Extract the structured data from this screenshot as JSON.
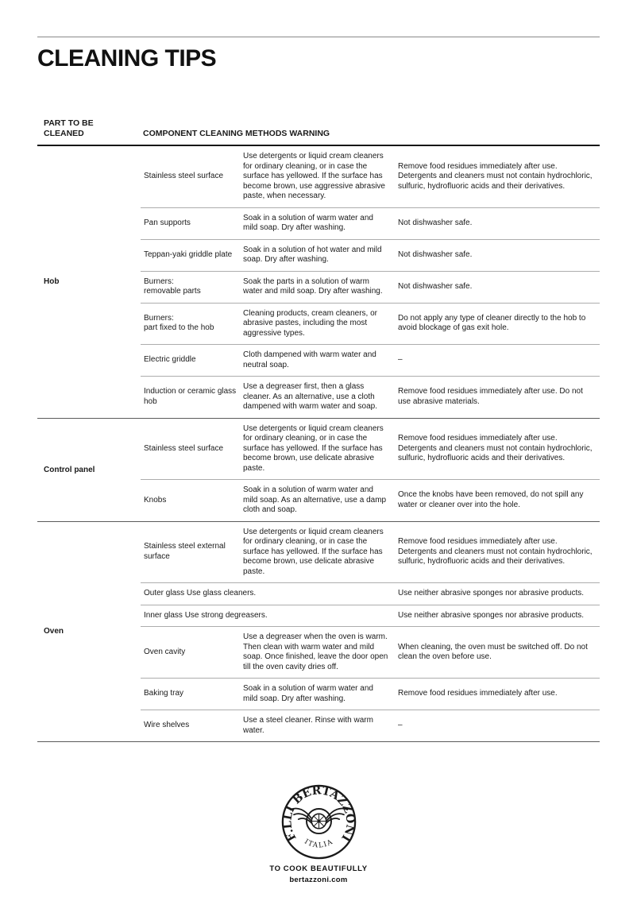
{
  "page": {
    "title": "CLEANING TIPS"
  },
  "table": {
    "header": {
      "col1": "PART TO BE CLEANED",
      "col_rest": "COMPONENT CLEANING METHODS WARNING"
    },
    "groups": [
      {
        "part": "Hob",
        "rows": [
          {
            "component": "Stainless steel surface",
            "methods": "Use detergents or liquid cream cleaners for ordinary cleaning, or in case the surface has yellowed. If the surface has become brown, use aggressive abrasive paste, when necessary.",
            "warning": "Remove food residues immediately after use. Detergents and cleaners must not contain hydrochloric, sulfuric, hydrofluoric acids and their derivatives."
          },
          {
            "component": "Pan supports",
            "methods": "Soak in a solution of warm water and mild soap. Dry after washing.",
            "warning": "Not dishwasher safe."
          },
          {
            "component": "Teppan-yaki griddle plate",
            "methods": "Soak in a solution of hot water and mild soap. Dry after washing.",
            "warning": "Not dishwasher safe."
          },
          {
            "component": "Burners:\nremovable parts",
            "methods": "Soak the parts in a solution of warm water and mild soap. Dry after washing.",
            "warning": "Not dishwasher safe."
          },
          {
            "component": "Burners:\npart fixed to the hob",
            "methods": "Cleaning products, cream cleaners, or abrasive pastes, including the most aggressive types.",
            "warning": "Do not apply any type of cleaner directly to the hob to avoid blockage of gas exit hole."
          },
          {
            "component": "Electric griddle",
            "methods": "Cloth dampened with warm water and neutral soap.",
            "warning": "–"
          },
          {
            "component": "Induction or ceramic glass hob",
            "methods": "Use a degreaser first, then a glass cleaner. As an alternative, use a cloth dampened with warm water and soap.",
            "warning": "Remove food residues immediately after use. Do not use abrasive materials."
          }
        ]
      },
      {
        "part": "Control panel",
        "rows": [
          {
            "component": "Stainless steel surface",
            "methods": "Use detergents or liquid cream cleaners for ordinary cleaning, or in case the surface has yellowed. If the surface has become brown, use delicate abrasive paste.",
            "warning": "Remove food residues immediately after use. Detergents and cleaners must not contain hydrochloric, sulfuric, hydrofluoric acids and their derivatives."
          },
          {
            "component": "Knobs",
            "methods": "Soak in a solution of warm water and mild soap. As an alternative, use a damp cloth and soap.",
            "warning": "Once the knobs have been removed, do not spill any water or cleaner over into the hole."
          }
        ]
      },
      {
        "part": "Oven",
        "rows": [
          {
            "component": "Stainless steel external surface",
            "methods": "Use detergents or liquid cream cleaners for ordinary cleaning, or in case the surface has yellowed. If the surface has become brown, use delicate abrasive paste.",
            "warning": "Remove food residues immediately after use. Detergents and cleaners must not contain hydrochloric, sulfuric, hydrofluoric acids and their derivatives."
          },
          {
            "merged": "Outer glass Use glass cleaners.",
            "warning": "Use neither abrasive sponges nor abrasive products."
          },
          {
            "merged": "Inner glass Use strong degreasers.",
            "warning": "Use neither abrasive sponges nor abrasive products."
          },
          {
            "component": "Oven cavity",
            "methods": "Use a degreaser when the oven is warm. Then clean with warm water and mild soap. Once finished, leave the door open till the oven cavity dries off.",
            "warning": "When cleaning, the oven must be switched off. Do not clean the oven before use."
          },
          {
            "component": "Baking tray",
            "methods": "Soak in a solution of warm water and mild soap. Dry after washing.",
            "warning": "Remove food residues immediately after use."
          },
          {
            "component": "Wire shelves",
            "methods": "Use a steel cleaner. Rinse with warm water.",
            "warning": "–"
          }
        ]
      }
    ]
  },
  "footer": {
    "logo_ring_text": "F.LLI BERTAZZONI",
    "logo_bottom_text": "ITALIA",
    "tagline": "TO COOK BEAUTIFULLY",
    "website": "bertazzoni.com"
  },
  "colors": {
    "text": "#1a1a1a",
    "row_separator": "#adadad",
    "group_separator": "#5a5a5a",
    "header_rule": "#161616",
    "top_rule": "#8a8a8a"
  }
}
